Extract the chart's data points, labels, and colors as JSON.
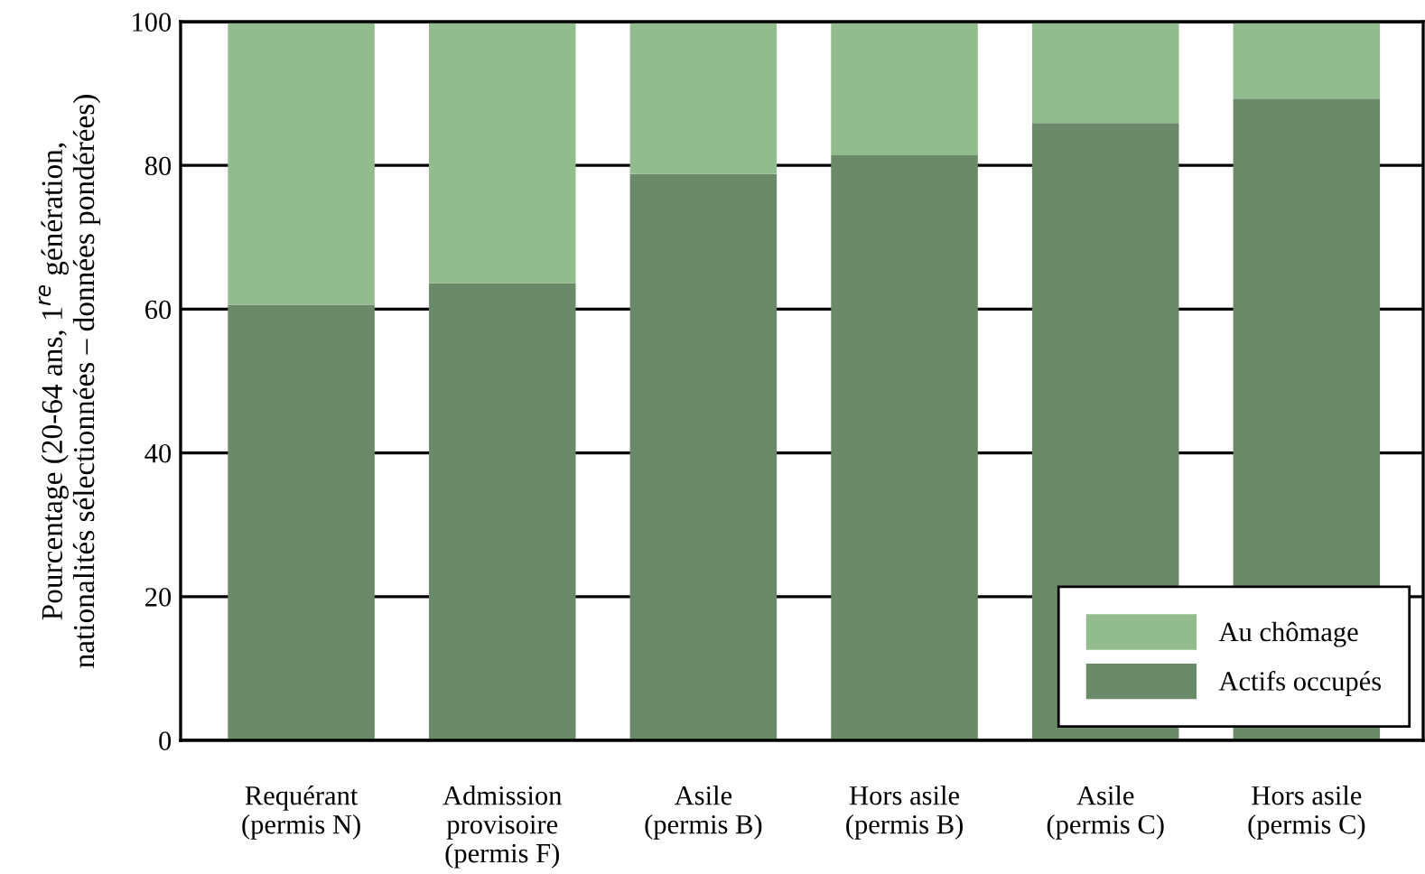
{
  "chart_data": {
    "type": "bar",
    "stacked": true,
    "ylabel": "Pourcentage (20-64 ans, 1$^{re}$ génération,\nnationalités sélectionnées – données pondérées)",
    "categories": [
      "Requérant\n(permis N)",
      "Admission\nprovisoire\n(permis F)",
      "Asile\n(permis B)",
      "Hors asile\n(permis B)",
      "Asile\n(permis C)",
      "Hors asile\n(permis C)"
    ],
    "series": [
      {
        "name": "Actifs occupés",
        "color": "#6a8a6a",
        "values": [
          60.6,
          63.6,
          78.8,
          81.4,
          85.9,
          89.3
        ]
      },
      {
        "name": "Au chômage",
        "color": "#92bc8e",
        "values": [
          39.4,
          36.4,
          21.2,
          18.6,
          14.1,
          10.7
        ]
      }
    ],
    "ylim": [
      0,
      100
    ],
    "yticks": [
      0,
      20,
      40,
      60,
      80,
      100
    ],
    "grid": "y",
    "legend": "bottom right"
  }
}
